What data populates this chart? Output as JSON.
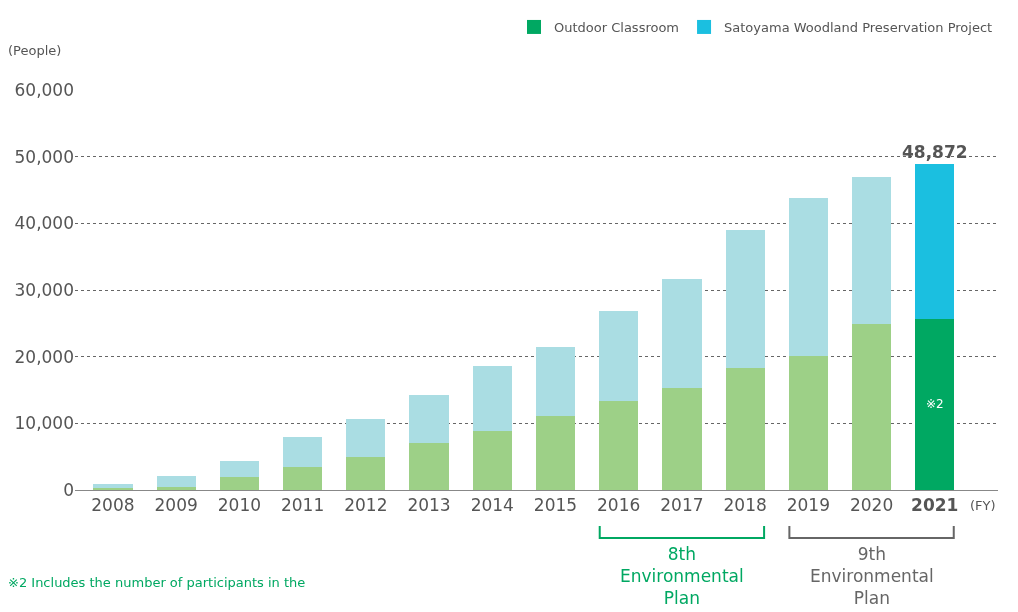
{
  "chart_data": {
    "type": "bar",
    "stacked": true,
    "ylabel": "(People)",
    "xlabel": "(FY)",
    "categories": [
      "2008",
      "2009",
      "2010",
      "2011",
      "2012",
      "2013",
      "2014",
      "2015",
      "2016",
      "2017",
      "2018",
      "2019",
      "2020",
      "2021"
    ],
    "series": [
      {
        "name": "Outdoor Classroom",
        "color": "#00a862",
        "colors": [
          "#9dd087",
          "#9dd087",
          "#9dd087",
          "#9dd087",
          "#9dd087",
          "#9dd087",
          "#9dd087",
          "#9dd087",
          "#9dd087",
          "#9dd087",
          "#9dd087",
          "#9dd087",
          "#9dd087",
          "#00a862"
        ],
        "values": [
          300,
          500,
          2000,
          3400,
          5000,
          7000,
          8900,
          11100,
          13300,
          15300,
          18300,
          20100,
          24900,
          25700
        ]
      },
      {
        "name": "Satoyama Woodland Preservation Project",
        "color": "#1bbfe0",
        "colors": [
          "#aadde3",
          "#aadde3",
          "#aadde3",
          "#aadde3",
          "#aadde3",
          "#aadde3",
          "#aadde3",
          "#aadde3",
          "#aadde3",
          "#aadde3",
          "#aadde3",
          "#aadde3",
          "#aadde3",
          "#1bbfe0"
        ],
        "values": [
          600,
          1600,
          2300,
          4500,
          5700,
          7300,
          9700,
          10300,
          13500,
          16400,
          20700,
          23700,
          22100,
          23172
        ]
      }
    ],
    "totals": [
      null,
      null,
      null,
      null,
      null,
      null,
      null,
      null,
      null,
      null,
      null,
      null,
      null,
      "48,872"
    ],
    "ylim": [
      0,
      60000
    ],
    "yticks": [
      {
        "value": 0,
        "label": "0"
      },
      {
        "value": 10000,
        "label": "10,000"
      },
      {
        "value": 20000,
        "label": "20,000"
      },
      {
        "value": 30000,
        "label": "30,000"
      },
      {
        "value": 40000,
        "label": "40,000"
      },
      {
        "value": 50000,
        "label": "50,000"
      },
      {
        "value": 60000,
        "label": "60,000"
      }
    ],
    "grid": "y",
    "legend": "top right",
    "annotations": [
      "※2",
      "8th\nEnvironmental\nPlan",
      "9th\nEnvironmental\nPlan",
      "※2 Includes the number of participants in the"
    ]
  }
}
